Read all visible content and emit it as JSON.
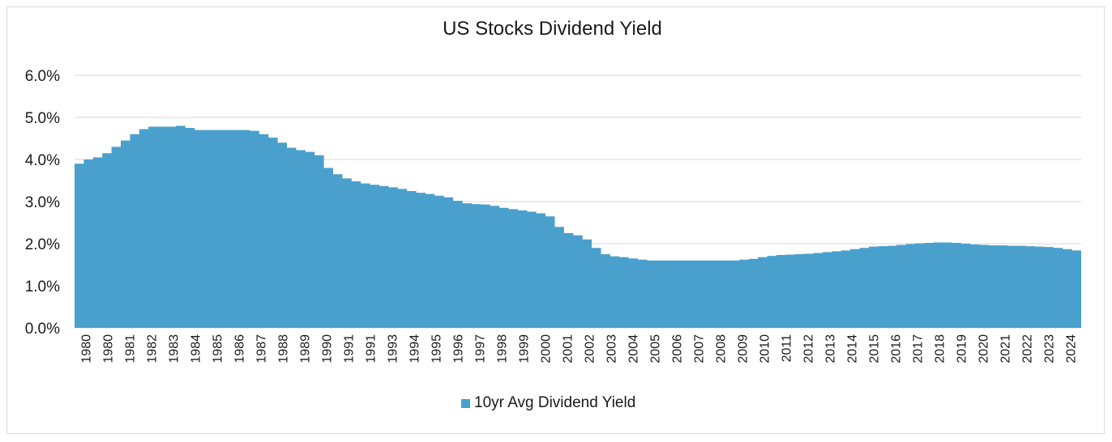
{
  "chart_data": {
    "type": "area",
    "title": "US Stocks Dividend Yield",
    "xlabel": "",
    "ylabel": "",
    "ylim": [
      0,
      6
    ],
    "y_ticks": [
      "0.0%",
      "1.0%",
      "2.0%",
      "3.0%",
      "4.0%",
      "5.0%",
      "6.0%"
    ],
    "x_tick_labels": [
      "1980",
      "1980",
      "1981",
      "1982",
      "1983",
      "1984",
      "1985",
      "1986",
      "1987",
      "1988",
      "1989",
      "1990",
      "1991",
      "1991",
      "1993",
      "1994",
      "1995",
      "1996",
      "1997",
      "1998",
      "1999",
      "2000",
      "2001",
      "2002",
      "2003",
      "2004",
      "2005",
      "2006",
      "2007",
      "2008",
      "2009",
      "2010",
      "2011",
      "2012",
      "2013",
      "2014",
      "2015",
      "2016",
      "2017",
      "2018",
      "2019",
      "2020",
      "2021",
      "2022",
      "2023",
      "2024"
    ],
    "grid": true,
    "legend_position": "bottom",
    "colors": {
      "series": "#4aa0cd",
      "grid": "#d9d9d9"
    },
    "series": [
      {
        "name": "10yr Avg Dividend Yield",
        "values": [
          3.9,
          4.0,
          4.05,
          4.15,
          4.3,
          4.45,
          4.6,
          4.72,
          4.78,
          4.78,
          4.78,
          4.8,
          4.75,
          4.7,
          4.7,
          4.7,
          4.7,
          4.7,
          4.7,
          4.68,
          4.6,
          4.52,
          4.4,
          4.28,
          4.22,
          4.18,
          4.1,
          3.8,
          3.65,
          3.55,
          3.48,
          3.43,
          3.4,
          3.37,
          3.34,
          3.3,
          3.25,
          3.21,
          3.18,
          3.14,
          3.1,
          3.02,
          2.96,
          2.94,
          2.93,
          2.9,
          2.85,
          2.82,
          2.79,
          2.76,
          2.72,
          2.65,
          2.4,
          2.25,
          2.2,
          2.1,
          1.9,
          1.75,
          1.7,
          1.68,
          1.65,
          1.62,
          1.6,
          1.6,
          1.6,
          1.6,
          1.6,
          1.6,
          1.6,
          1.6,
          1.6,
          1.6,
          1.62,
          1.64,
          1.68,
          1.71,
          1.73,
          1.74,
          1.75,
          1.76,
          1.78,
          1.8,
          1.82,
          1.84,
          1.87,
          1.9,
          1.93,
          1.94,
          1.95,
          1.97,
          1.99,
          2.01,
          2.02,
          2.03,
          2.03,
          2.02,
          2.0,
          1.98,
          1.97,
          1.96,
          1.96,
          1.95,
          1.95,
          1.94,
          1.93,
          1.92,
          1.9,
          1.87,
          1.84
        ]
      }
    ]
  }
}
